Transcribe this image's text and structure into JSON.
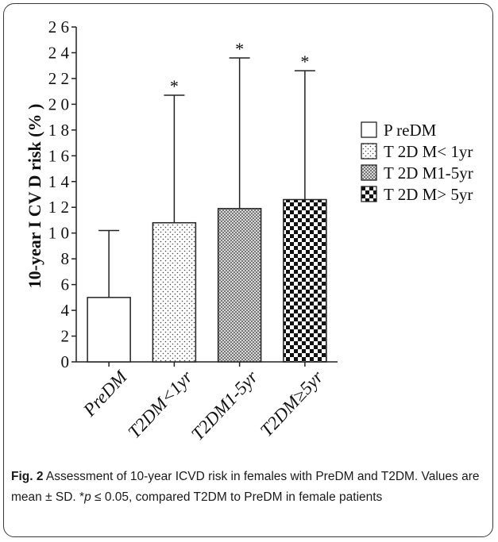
{
  "chart_data": {
    "type": "bar",
    "categories": [
      "PreDM",
      "T2DM<1yr",
      "T2DM1-5yr",
      "T2DM≥5yr"
    ],
    "values": [
      5.0,
      10.8,
      11.9,
      12.6
    ],
    "sd": [
      5.2,
      9.9,
      11.7,
      10.0
    ],
    "significance": [
      "",
      "*",
      "*",
      "*"
    ],
    "legend": [
      "P reDM",
      "T 2D M< 1yr",
      "T 2D M1-5yr",
      "T 2D M> 5yr"
    ],
    "ylabel": "10-year I CV D risk (% )",
    "yticks": [
      "0",
      "2",
      "4",
      "6",
      "8",
      "1 0",
      "1 2",
      "1 4",
      "1 6",
      "1 8",
      "2 0",
      "2 2",
      "2 4",
      "2 6"
    ],
    "ylim": [
      0,
      26
    ],
    "patterns": [
      "none",
      "dots",
      "fine-checker",
      "checker"
    ],
    "grid": false,
    "legend_position": "right"
  },
  "caption": {
    "label": "Fig. 2",
    "text": " Assessment of 10-year ICVD risk in females with PreDM and T2DM. Values are mean ± SD. *",
    "p": "p",
    "text2": " ≤ 0.05, compared T2DM to PreDM in female patients"
  }
}
